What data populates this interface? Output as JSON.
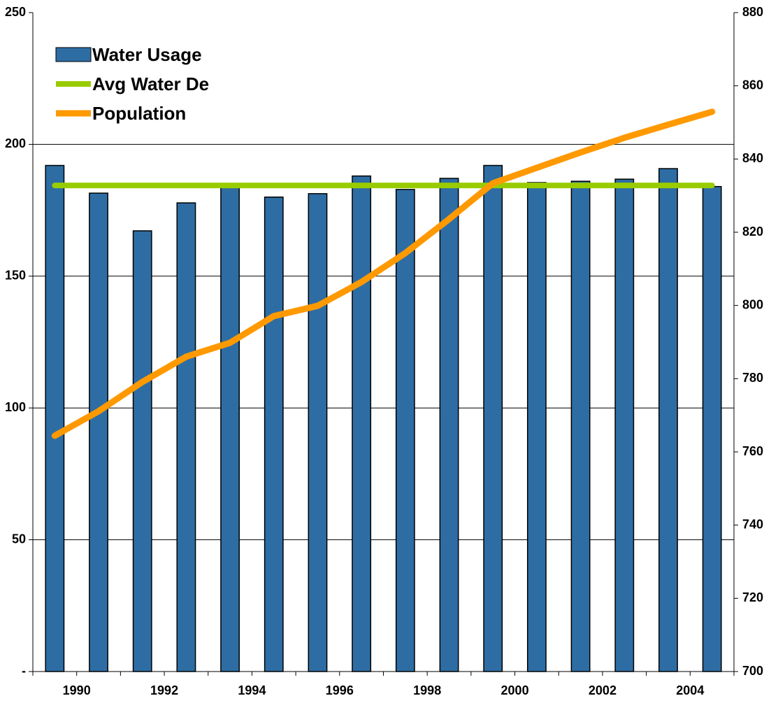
{
  "chart_data": {
    "type": "bar",
    "categories": [
      "1990",
      null,
      "1992",
      null,
      "1994",
      null,
      "1996",
      null,
      "1998",
      null,
      "2000",
      null,
      "2002",
      null,
      "2004",
      null
    ],
    "series": [
      {
        "name": "Water Usage",
        "color": "#2e6da4",
        "values": [
          192,
          181.5,
          167.2,
          177.8,
          184,
          180,
          181.3,
          188,
          182.9,
          187.1,
          192,
          185.5,
          186,
          186.8,
          190.8,
          184
        ]
      },
      {
        "name": "Avg Water De",
        "type": "line",
        "color": "#99cc00",
        "values": [
          184.4,
          184.4,
          184.4,
          184.4,
          184.4,
          184.4,
          184.4,
          184.4,
          184.4,
          184.4,
          184.4,
          184.4,
          184.4,
          184.4,
          184.4,
          184.4
        ]
      },
      {
        "name": "Population",
        "type": "line",
        "axis": "y2",
        "color": "#ff9900",
        "values": [
          764.4,
          771.1,
          779.1,
          786,
          789.8,
          797.1,
          799.9,
          806.4,
          814.3,
          823.6,
          833.4,
          837.6,
          841.8,
          845.8,
          849.4,
          852.9
        ]
      }
    ],
    "ylim": [
      0,
      250
    ],
    "yticks": [
      {
        "value": 0,
        "label": "-"
      },
      50,
      100,
      150,
      200,
      250
    ],
    "y2lim": [
      700,
      880
    ],
    "y2ticks": [
      700,
      720,
      740,
      760,
      780,
      800,
      820,
      840,
      860,
      880
    ],
    "grid": true,
    "legend": "top-left"
  }
}
